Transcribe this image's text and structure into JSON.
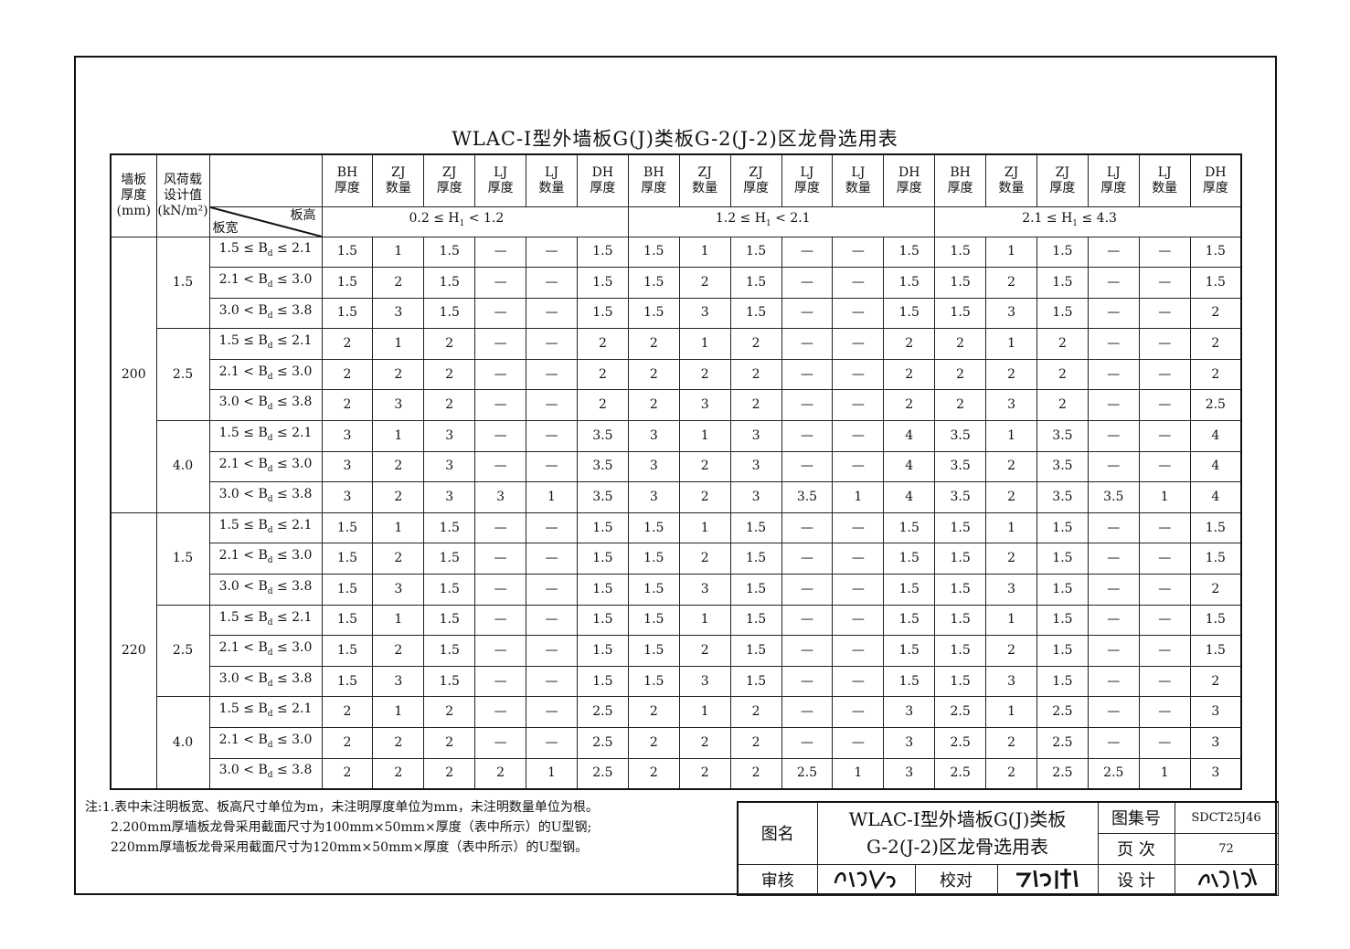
{
  "title": "WLAC-Ⅰ型外墙板G(J)类板G-2(J-2)区龙骨选用表",
  "header": {
    "wall_thickness": [
      "墙板",
      "厚度",
      "(mm)"
    ],
    "wind_load": [
      "风荷载",
      "设计值",
      "(kN/m²)"
    ],
    "diag_top": "板高",
    "diag_bottom": "板宽",
    "columns": [
      [
        "BH",
        "厚度"
      ],
      [
        "ZJ",
        "数量"
      ],
      [
        "ZJ",
        "厚度"
      ],
      [
        "LJ",
        "厚度"
      ],
      [
        "LJ",
        "数量"
      ],
      [
        "DH",
        "厚度"
      ]
    ],
    "height_ranges": [
      {
        "pre": "0.2 ≤ H",
        "sub": "1",
        "post": " < 1.2"
      },
      {
        "pre": "1.2 ≤ H",
        "sub": "1",
        "post": " < 2.1"
      },
      {
        "pre": "2.1 ≤ H",
        "sub": "1",
        "post": " ≤ 4.3"
      }
    ]
  },
  "width_ranges": [
    {
      "pre": "1.5 ≤ B",
      "sub": "d",
      "post": " ≤ 2.1"
    },
    {
      "pre": "2.1 < B",
      "sub": "d",
      "post": " ≤ 3.0"
    },
    {
      "pre": "3.0 < B",
      "sub": "d",
      "post": " ≤ 3.8"
    }
  ],
  "groups": [
    {
      "thickness": "200",
      "loads": [
        {
          "load": "1.5",
          "rows": [
            [
              "1.5",
              "1",
              "1.5",
              "—",
              "—",
              "1.5",
              "1.5",
              "1",
              "1.5",
              "—",
              "—",
              "1.5",
              "1.5",
              "1",
              "1.5",
              "—",
              "—",
              "1.5"
            ],
            [
              "1.5",
              "2",
              "1.5",
              "—",
              "—",
              "1.5",
              "1.5",
              "2",
              "1.5",
              "—",
              "—",
              "1.5",
              "1.5",
              "2",
              "1.5",
              "—",
              "—",
              "1.5"
            ],
            [
              "1.5",
              "3",
              "1.5",
              "—",
              "—",
              "1.5",
              "1.5",
              "3",
              "1.5",
              "—",
              "—",
              "1.5",
              "1.5",
              "3",
              "1.5",
              "—",
              "—",
              "2"
            ]
          ]
        },
        {
          "load": "2.5",
          "rows": [
            [
              "2",
              "1",
              "2",
              "—",
              "—",
              "2",
              "2",
              "1",
              "2",
              "—",
              "—",
              "2",
              "2",
              "1",
              "2",
              "—",
              "—",
              "2"
            ],
            [
              "2",
              "2",
              "2",
              "—",
              "—",
              "2",
              "2",
              "2",
              "2",
              "—",
              "—",
              "2",
              "2",
              "2",
              "2",
              "—",
              "—",
              "2"
            ],
            [
              "2",
              "3",
              "2",
              "—",
              "—",
              "2",
              "2",
              "3",
              "2",
              "—",
              "—",
              "2",
              "2",
              "3",
              "2",
              "—",
              "—",
              "2.5"
            ]
          ]
        },
        {
          "load": "4.0",
          "rows": [
            [
              "3",
              "1",
              "3",
              "—",
              "—",
              "3.5",
              "3",
              "1",
              "3",
              "—",
              "—",
              "4",
              "3.5",
              "1",
              "3.5",
              "—",
              "—",
              "4"
            ],
            [
              "3",
              "2",
              "3",
              "—",
              "—",
              "3.5",
              "3",
              "2",
              "3",
              "—",
              "—",
              "4",
              "3.5",
              "2",
              "3.5",
              "—",
              "—",
              "4"
            ],
            [
              "3",
              "2",
              "3",
              "3",
              "1",
              "3.5",
              "3",
              "2",
              "3",
              "3.5",
              "1",
              "4",
              "3.5",
              "2",
              "3.5",
              "3.5",
              "1",
              "4"
            ]
          ]
        }
      ]
    },
    {
      "thickness": "220",
      "loads": [
        {
          "load": "1.5",
          "rows": [
            [
              "1.5",
              "1",
              "1.5",
              "—",
              "—",
              "1.5",
              "1.5",
              "1",
              "1.5",
              "—",
              "—",
              "1.5",
              "1.5",
              "1",
              "1.5",
              "—",
              "—",
              "1.5"
            ],
            [
              "1.5",
              "2",
              "1.5",
              "—",
              "—",
              "1.5",
              "1.5",
              "2",
              "1.5",
              "—",
              "—",
              "1.5",
              "1.5",
              "2",
              "1.5",
              "—",
              "—",
              "1.5"
            ],
            [
              "1.5",
              "3",
              "1.5",
              "—",
              "—",
              "1.5",
              "1.5",
              "3",
              "1.5",
              "—",
              "—",
              "1.5",
              "1.5",
              "3",
              "1.5",
              "—",
              "—",
              "2"
            ]
          ]
        },
        {
          "load": "2.5",
          "rows": [
            [
              "1.5",
              "1",
              "1.5",
              "—",
              "—",
              "1.5",
              "1.5",
              "1",
              "1.5",
              "—",
              "—",
              "1.5",
              "1.5",
              "1",
              "1.5",
              "—",
              "—",
              "1.5"
            ],
            [
              "1.5",
              "2",
              "1.5",
              "—",
              "—",
              "1.5",
              "1.5",
              "2",
              "1.5",
              "—",
              "—",
              "1.5",
              "1.5",
              "2",
              "1.5",
              "—",
              "—",
              "1.5"
            ],
            [
              "1.5",
              "3",
              "1.5",
              "—",
              "—",
              "1.5",
              "1.5",
              "3",
              "1.5",
              "—",
              "—",
              "1.5",
              "1.5",
              "3",
              "1.5",
              "—",
              "—",
              "2"
            ]
          ]
        },
        {
          "load": "4.0",
          "rows": [
            [
              "2",
              "1",
              "2",
              "—",
              "—",
              "2.5",
              "2",
              "1",
              "2",
              "—",
              "—",
              "3",
              "2.5",
              "1",
              "2.5",
              "—",
              "—",
              "3"
            ],
            [
              "2",
              "2",
              "2",
              "—",
              "—",
              "2.5",
              "2",
              "2",
              "2",
              "—",
              "—",
              "3",
              "2.5",
              "2",
              "2.5",
              "—",
              "—",
              "3"
            ],
            [
              "2",
              "2",
              "2",
              "2",
              "1",
              "2.5",
              "2",
              "2",
              "2",
              "2.5",
              "1",
              "3",
              "2.5",
              "2",
              "2.5",
              "2.5",
              "1",
              "3"
            ]
          ]
        }
      ]
    }
  ],
  "notes": [
    "注:1.表中未注明板宽、板高尺寸单位为m，未注明厚度单位为mm，未注明数量单位为根。",
    "2.200mm厚墙板龙骨采用截面尺寸为100mm×50mm×厚度（表中所示）的U型钢;",
    "220mm厚墙板龙骨采用截面尺寸为120mm×50mm×厚度（表中所示）的U型钢。"
  ],
  "title_block": {
    "drawing_name_label": "图名",
    "drawing_name_line1": "WLAC-Ⅰ型外墙板G(J)类板",
    "drawing_name_line2": "G-2(J-2)区龙骨选用表",
    "atlas_no_label": "图集号",
    "atlas_no": "SDCT25J46",
    "page_label": "页 次",
    "page": "72",
    "review_label": "审核",
    "check_label": "校对",
    "design_label": "设 计"
  }
}
